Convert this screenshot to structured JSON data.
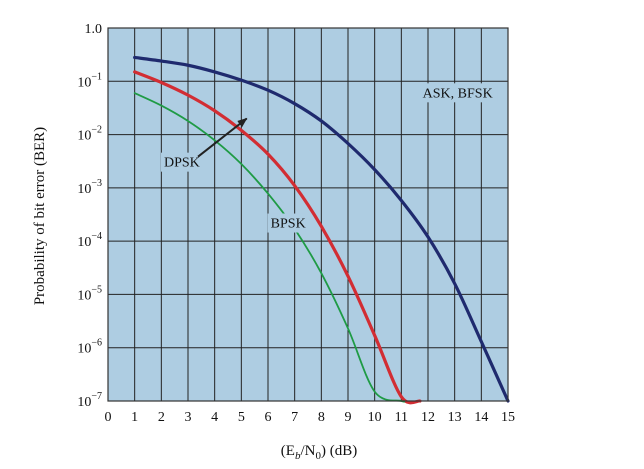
{
  "chart_data": {
    "type": "line",
    "xlabel_parts": [
      "(E",
      "b",
      "/N",
      "0",
      ") (dB)"
    ],
    "ylabel": "Probability of bit error (BER)",
    "xlim": [
      0,
      15
    ],
    "ylim": [
      1e-07,
      1.0
    ],
    "y_scale": "log",
    "grid": true,
    "plot_background": "#aecde2",
    "x_ticks": [
      "0",
      "1",
      "2",
      "3",
      "4",
      "5",
      "6",
      "7",
      "8",
      "9",
      "10",
      "11",
      "12",
      "13",
      "14",
      "15"
    ],
    "y_ticks": [
      {
        "value": 1.0,
        "mantissa": "1.0",
        "exp": ""
      },
      {
        "value": 0.1,
        "mantissa": "10",
        "exp": "−1"
      },
      {
        "value": 0.01,
        "mantissa": "10",
        "exp": "−2"
      },
      {
        "value": 0.001,
        "mantissa": "10",
        "exp": "−3"
      },
      {
        "value": 0.0001,
        "mantissa": "10",
        "exp": "−4"
      },
      {
        "value": 1e-05,
        "mantissa": "10",
        "exp": "−5"
      },
      {
        "value": 1e-06,
        "mantissa": "10",
        "exp": "−6"
      },
      {
        "value": 1e-07,
        "mantissa": "10",
        "exp": "−7"
      }
    ],
    "series": [
      {
        "name": "ASK, BFSK",
        "color": "#1f2a6e",
        "x": [
          1,
          2,
          3,
          4,
          5,
          6,
          7,
          8,
          9,
          10,
          11,
          12,
          13,
          14,
          15
        ],
        "y": [
          0.28,
          0.24,
          0.2,
          0.15,
          0.105,
          0.068,
          0.038,
          0.018,
          0.0068,
          0.0022,
          0.00058,
          0.00012,
          1.6e-05,
          1.3e-06,
          1e-07
        ]
      },
      {
        "name": "DPSK",
        "color": "#d22d33",
        "x": [
          1,
          2,
          3,
          4,
          5,
          6,
          7,
          8,
          9,
          10,
          11,
          11.7
        ],
        "y": [
          0.15,
          0.095,
          0.055,
          0.028,
          0.012,
          0.0043,
          0.0011,
          0.00019,
          2.2e-05,
          1.7e-06,
          1.2e-07,
          1e-07
        ]
      },
      {
        "name": "BPSK",
        "color": "#1f9b45",
        "x": [
          1,
          2,
          3,
          4,
          5,
          6,
          7,
          8,
          9,
          10,
          11,
          11.1
        ],
        "y": [
          0.06,
          0.035,
          0.018,
          0.0078,
          0.0028,
          0.00078,
          0.00017,
          2.5e-05,
          2.3e-06,
          1.5e-07,
          1e-07,
          1e-07
        ]
      }
    ],
    "annotations": [
      {
        "text": "ASK, BFSK",
        "x": 11.8,
        "y": 0.05
      },
      {
        "text": "DPSK",
        "x": 2.1,
        "y": 0.0025,
        "arrow_to": {
          "x": 5.2,
          "y": 0.02
        }
      },
      {
        "text": "BPSK",
        "x": 6.1,
        "y": 0.00018
      }
    ]
  }
}
